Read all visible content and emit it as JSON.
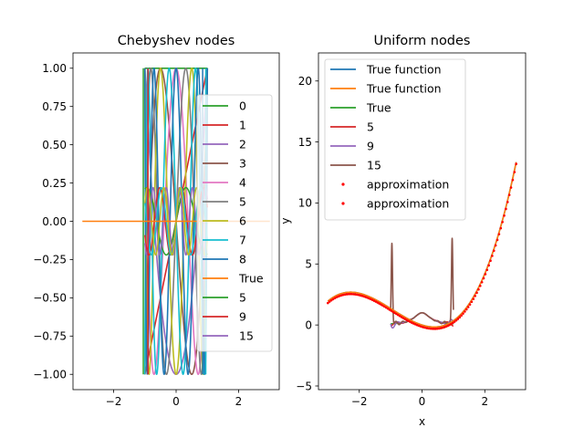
{
  "chart_data": [
    {
      "type": "line",
      "title": "Chebyshev nodes",
      "xlabel": "",
      "ylabel": "",
      "xlim": [
        -3.3,
        3.3
      ],
      "ylim": [
        -1.1,
        1.1
      ],
      "xticks": [
        -2,
        0,
        2
      ],
      "xtick_labels": [
        "−2",
        "0",
        "2"
      ],
      "yticks": [
        -1.0,
        -0.75,
        -0.5,
        -0.25,
        0.0,
        0.25,
        0.5,
        0.75,
        1.0
      ],
      "ytick_labels": [
        "−1.00",
        "−0.75",
        "−0.50",
        "−0.25",
        "0.00",
        "0.25",
        "0.50",
        "0.75",
        "1.00"
      ],
      "legend_placement": "center-right",
      "chebyshev_degrees": [
        0,
        1,
        2,
        3,
        4,
        5,
        6,
        7,
        8
      ],
      "true_function": {
        "name": "True",
        "x": [
          -3,
          3
        ],
        "y": [
          0,
          0
        ]
      },
      "approx_degrees": [
        5,
        9,
        15
      ],
      "legend": [
        {
          "label": "0",
          "color": "#2ca02c"
        },
        {
          "label": "1",
          "color": "#d62728"
        },
        {
          "label": "2",
          "color": "#9467bd"
        },
        {
          "label": "3",
          "color": "#8c564b"
        },
        {
          "label": "4",
          "color": "#e377c2"
        },
        {
          "label": "5",
          "color": "#7f7f7f"
        },
        {
          "label": "6",
          "color": "#bcbd22"
        },
        {
          "label": "7",
          "color": "#17becf"
        },
        {
          "label": "8",
          "color": "#1f77b4"
        },
        {
          "label": "True",
          "color": "#ff7f0e"
        },
        {
          "label": "5",
          "color": "#2ca02c"
        },
        {
          "label": "9",
          "color": "#d62728"
        },
        {
          "label": "15",
          "color": "#9467bd"
        }
      ]
    },
    {
      "type": "line",
      "title": "Uniform nodes",
      "xlabel": "x",
      "ylabel": "y",
      "xlim": [
        -3.3,
        3.3
      ],
      "ylim": [
        -5.3,
        22.3
      ],
      "xticks": [
        -2,
        0,
        2
      ],
      "xtick_labels": [
        "−2",
        "0",
        "2"
      ],
      "yticks": [
        -5,
        0,
        5,
        10,
        15,
        20
      ],
      "ytick_labels": [
        "−5",
        "0",
        "5",
        "10",
        "15",
        "20"
      ],
      "legend_placement": "upper-left",
      "true_function": {
        "formula": "0.3x^3 + 0.85x^2 - 0.8x",
        "domain": [
          -3,
          3
        ]
      },
      "runge_bump": {
        "formula": "1/(1+10x^2)",
        "domain": [
          -1,
          1
        ]
      },
      "approx_degrees": [
        5,
        9,
        15
      ],
      "legend": [
        {
          "label": "True function",
          "color": "#1f77b4",
          "marker": "line"
        },
        {
          "label": "True function",
          "color": "#ff7f0e",
          "marker": "line"
        },
        {
          "label": "True",
          "color": "#2ca02c",
          "marker": "line"
        },
        {
          "label": "5",
          "color": "#d62728",
          "marker": "line"
        },
        {
          "label": "9",
          "color": "#9467bd",
          "marker": "line"
        },
        {
          "label": "15",
          "color": "#8c564b",
          "marker": "line"
        },
        {
          "label": "approximation",
          "color": "#ff0000",
          "marker": "dot"
        },
        {
          "label": "approximation",
          "color": "#ff0000",
          "marker": "dot"
        }
      ]
    }
  ]
}
